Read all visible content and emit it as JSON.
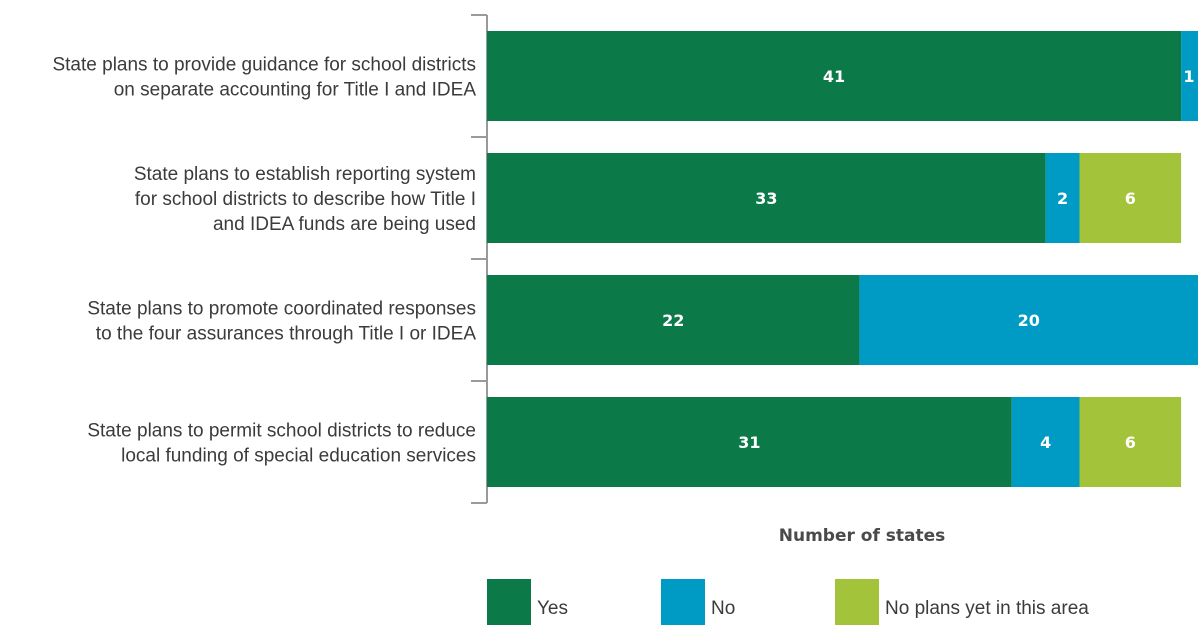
{
  "chart_data": {
    "type": "bar",
    "orientation": "horizontal",
    "stacked": true,
    "categories": [
      "State plans to provide guidance for school districts on separate accounting for Title I and IDEA",
      "State plans to establish reporting system for school districts to describe how Title I and IDEA funds are being used",
      "State plans to promote coordinated responses to the four assurances through Title I or IDEA",
      "State plans to permit school districts to reduce local funding of special education services"
    ],
    "category_lines": [
      [
        "State plans to provide guidance for school districts",
        "on separate accounting for Title I and IDEA"
      ],
      [
        "State plans to establish reporting system",
        "for school districts to describe how Title I",
        "and IDEA funds are being used"
      ],
      [
        "State plans to promote coordinated responses",
        "to the four assurances through Title I or IDEA"
      ],
      [
        "State plans to permit school districts to reduce",
        "local funding of special education services"
      ]
    ],
    "series": [
      {
        "name": "Yes",
        "color": "#0b7a48",
        "values": [
          41,
          33,
          22,
          31
        ]
      },
      {
        "name": "No",
        "color": "#009bc4",
        "values": [
          1,
          2,
          20,
          4
        ]
      },
      {
        "name": "No plans yet in this area",
        "color": "#a3c33a",
        "values": [
          0,
          6,
          0,
          6
        ]
      }
    ],
    "xlabel": "Number of states",
    "xlim": [
      0,
      42
    ],
    "grid": false,
    "legend_position": "bottom"
  }
}
